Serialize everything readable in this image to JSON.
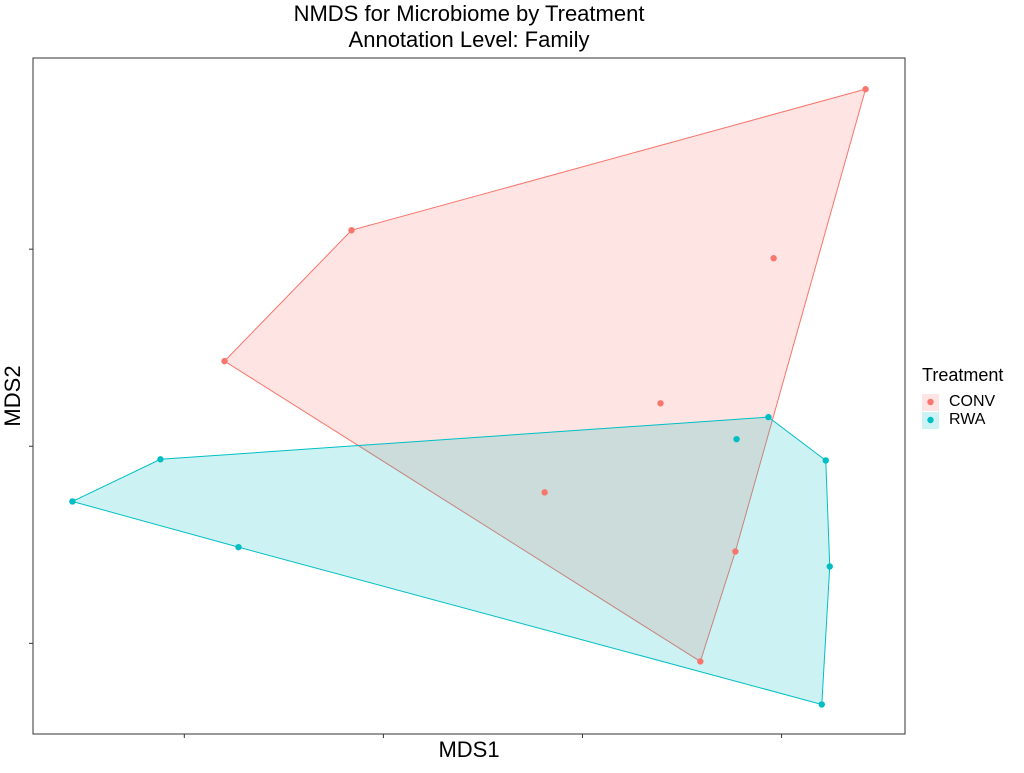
{
  "chart_data": {
    "type": "scatter",
    "title": "NMDS for Microbiome by Treatment",
    "subtitle": "Annotation Level: Family",
    "x_label": "MDS1",
    "y_label": "MDS2",
    "legend_title": "Treatment",
    "legend_position": "right",
    "xlim": [
      -0.88,
      1.31
    ],
    "ylim": [
      -0.73,
      0.985
    ],
    "xticks": [
      -0.5,
      0,
      0.5,
      1
    ],
    "yticks": [
      -0.5,
      0,
      0.5
    ],
    "hull": true,
    "series": [
      {
        "name": "CONV",
        "color": "#F8766D",
        "x": [
          1.211,
          -0.08,
          0.98,
          -0.399,
          0.696,
          0.405,
          0.884,
          0.796
        ],
        "values": [
          0.906,
          0.548,
          0.477,
          0.216,
          0.109,
          -0.117,
          -0.267,
          -0.546
        ]
      },
      {
        "name": "RWA",
        "color": "#00BFC4",
        "x": [
          0.967,
          0.887,
          -0.56,
          1.111,
          -0.781,
          -0.364,
          1.121,
          1.101
        ],
        "values": [
          0.074,
          0.018,
          -0.033,
          -0.036,
          -0.14,
          -0.256,
          -0.305,
          -0.655
        ]
      }
    ]
  }
}
